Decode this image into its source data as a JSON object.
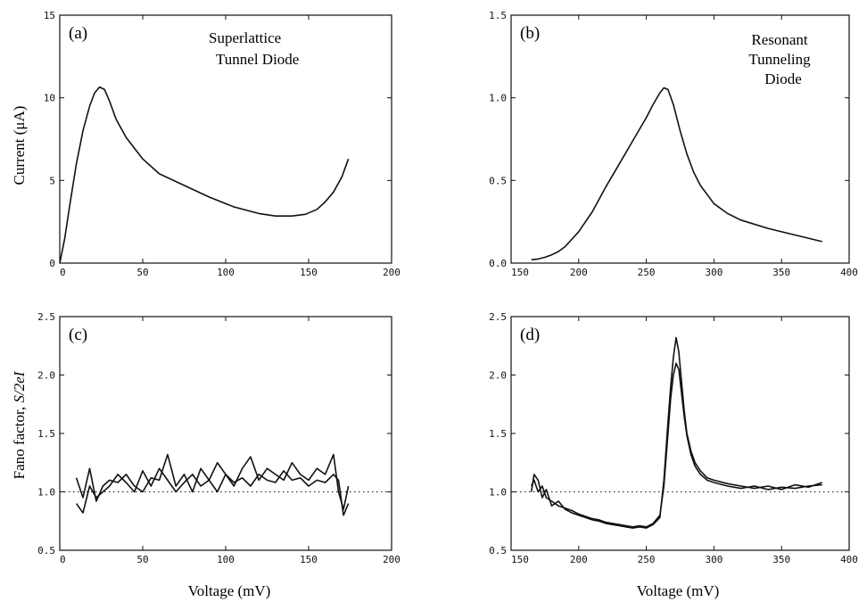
{
  "figure": {
    "ylabel_top": "Current (μA)",
    "ylabel_bottom_prefix": "Fano factor, ",
    "ylabel_bottom_italic": "S/2eI",
    "xlabel_left": "Voltage (mV)",
    "xlabel_right": "Voltage (mV)"
  },
  "chart_data": [
    {
      "id": "a",
      "type": "line",
      "panel_label": "(a)",
      "annotation": [
        "Superlattice",
        "Tunnel Diode"
      ],
      "xlim": [
        0,
        200
      ],
      "ylim": [
        0,
        15
      ],
      "xticks": [
        0,
        50,
        100,
        150,
        200
      ],
      "yticks": [
        0,
        5,
        10,
        15
      ],
      "ytick_labels": [
        "0",
        "5",
        "10",
        "15"
      ],
      "grid": false,
      "reference_line": null,
      "series": [
        {
          "x": [
            0,
            3,
            6,
            10,
            14,
            18,
            21,
            24,
            27,
            30,
            34,
            40,
            50,
            60,
            75,
            90,
            105,
            120,
            130,
            140,
            148,
            155,
            160,
            165,
            170,
            174
          ],
          "y": [
            0,
            1.5,
            3.5,
            6.0,
            8.0,
            9.5,
            10.3,
            10.65,
            10.5,
            9.8,
            8.7,
            7.6,
            6.3,
            5.4,
            4.7,
            4.0,
            3.4,
            3.0,
            2.85,
            2.85,
            2.95,
            3.25,
            3.7,
            4.3,
            5.2,
            6.3
          ]
        }
      ]
    },
    {
      "id": "b",
      "type": "line",
      "panel_label": "(b)",
      "annotation": [
        "Resonant",
        "Tunneling",
        "Diode"
      ],
      "xlim": [
        150,
        400
      ],
      "ylim": [
        0,
        1.5
      ],
      "xticks": [
        150,
        200,
        250,
        300,
        350,
        400
      ],
      "yticks": [
        0,
        0.5,
        1.0,
        1.5
      ],
      "ytick_labels": [
        "0.0",
        "0.5",
        "1.0",
        "1.5"
      ],
      "grid": false,
      "reference_line": null,
      "series": [
        {
          "x": [
            165,
            170,
            175,
            180,
            185,
            190,
            200,
            210,
            220,
            230,
            240,
            250,
            255,
            260,
            263,
            266,
            270,
            275,
            280,
            285,
            290,
            300,
            310,
            320,
            340,
            360,
            380
          ],
          "y": [
            0.02,
            0.025,
            0.035,
            0.05,
            0.07,
            0.1,
            0.19,
            0.31,
            0.46,
            0.6,
            0.74,
            0.88,
            0.96,
            1.03,
            1.06,
            1.05,
            0.96,
            0.8,
            0.66,
            0.55,
            0.47,
            0.36,
            0.3,
            0.26,
            0.21,
            0.17,
            0.13
          ]
        }
      ]
    },
    {
      "id": "c",
      "type": "line",
      "panel_label": "(c)",
      "annotation": [],
      "xlim": [
        0,
        200
      ],
      "ylim": [
        0.5,
        2.5
      ],
      "xticks": [
        0,
        50,
        100,
        150,
        200
      ],
      "yticks": [
        0.5,
        1.0,
        1.5,
        2.0,
        2.5
      ],
      "ytick_labels": [
        "0.5",
        "1.0",
        "1.5",
        "2.0",
        "2.5"
      ],
      "grid": false,
      "reference_line": 1.0,
      "series": [
        {
          "x": [
            10,
            14,
            18,
            22,
            26,
            30,
            35,
            40,
            45,
            50,
            55,
            60,
            65,
            70,
            75,
            80,
            85,
            90,
            95,
            100,
            105,
            110,
            115,
            120,
            125,
            130,
            135,
            140,
            145,
            150,
            155,
            160,
            165,
            168,
            171,
            174
          ],
          "y": [
            1.12,
            0.95,
            1.2,
            0.92,
            1.05,
            1.1,
            1.08,
            1.15,
            1.05,
            1.0,
            1.12,
            1.1,
            1.32,
            1.05,
            1.15,
            1.0,
            1.2,
            1.1,
            1.25,
            1.15,
            1.05,
            1.2,
            1.3,
            1.1,
            1.2,
            1.15,
            1.1,
            1.25,
            1.15,
            1.1,
            1.2,
            1.15,
            1.32,
            1.0,
            0.85,
            1.05
          ]
        },
        {
          "x": [
            10,
            14,
            18,
            22,
            26,
            30,
            35,
            40,
            45,
            50,
            55,
            60,
            65,
            70,
            75,
            80,
            85,
            90,
            95,
            100,
            105,
            110,
            115,
            120,
            125,
            130,
            135,
            140,
            145,
            150,
            155,
            160,
            165,
            168,
            171,
            174
          ],
          "y": [
            0.9,
            0.82,
            1.05,
            0.95,
            1.0,
            1.05,
            1.15,
            1.08,
            1.0,
            1.18,
            1.05,
            1.2,
            1.1,
            1.0,
            1.08,
            1.15,
            1.05,
            1.1,
            1.0,
            1.15,
            1.08,
            1.12,
            1.05,
            1.15,
            1.1,
            1.08,
            1.18,
            1.1,
            1.12,
            1.05,
            1.1,
            1.08,
            1.15,
            1.1,
            0.8,
            0.9
          ]
        }
      ]
    },
    {
      "id": "d",
      "type": "line",
      "panel_label": "(d)",
      "annotation": [],
      "xlim": [
        150,
        400
      ],
      "ylim": [
        0.5,
        2.5
      ],
      "xticks": [
        150,
        200,
        250,
        300,
        350,
        400
      ],
      "yticks": [
        0.5,
        1.0,
        1.5,
        2.0,
        2.5
      ],
      "ytick_labels": [
        "0.5",
        "1.0",
        "1.5",
        "2.0",
        "2.5"
      ],
      "grid": false,
      "reference_line": 1.0,
      "series": [
        {
          "x": [
            165,
            167,
            170,
            173,
            176,
            180,
            185,
            190,
            195,
            200,
            205,
            210,
            215,
            220,
            225,
            230,
            235,
            240,
            245,
            250,
            255,
            260,
            263,
            266,
            268,
            270,
            272,
            274,
            276,
            278,
            280,
            283,
            286,
            290,
            295,
            300,
            310,
            320,
            330,
            340,
            350,
            360,
            370,
            380
          ],
          "y": [
            1.0,
            1.15,
            1.1,
            0.95,
            1.02,
            0.88,
            0.92,
            0.85,
            0.82,
            0.8,
            0.78,
            0.76,
            0.75,
            0.73,
            0.72,
            0.71,
            0.7,
            0.69,
            0.7,
            0.69,
            0.72,
            0.78,
            1.1,
            1.6,
            1.9,
            2.15,
            2.32,
            2.2,
            1.95,
            1.7,
            1.5,
            1.35,
            1.25,
            1.18,
            1.12,
            1.1,
            1.07,
            1.05,
            1.03,
            1.05,
            1.02,
            1.06,
            1.04,
            1.08
          ]
        },
        {
          "x": [
            165,
            167,
            170,
            173,
            176,
            180,
            185,
            190,
            195,
            200,
            205,
            210,
            215,
            220,
            225,
            230,
            235,
            240,
            245,
            250,
            255,
            260,
            263,
            266,
            268,
            270,
            272,
            274,
            276,
            278,
            280,
            283,
            286,
            290,
            295,
            300,
            310,
            320,
            330,
            340,
            350,
            360,
            370,
            380
          ],
          "y": [
            1.05,
            1.1,
            1.0,
            1.05,
            0.95,
            0.92,
            0.88,
            0.86,
            0.84,
            0.81,
            0.79,
            0.77,
            0.76,
            0.74,
            0.73,
            0.72,
            0.71,
            0.7,
            0.71,
            0.7,
            0.73,
            0.8,
            1.05,
            1.5,
            1.8,
            2.0,
            2.1,
            2.05,
            1.85,
            1.65,
            1.48,
            1.32,
            1.22,
            1.15,
            1.1,
            1.08,
            1.05,
            1.03,
            1.05,
            1.02,
            1.04,
            1.03,
            1.05,
            1.06
          ]
        }
      ]
    }
  ]
}
